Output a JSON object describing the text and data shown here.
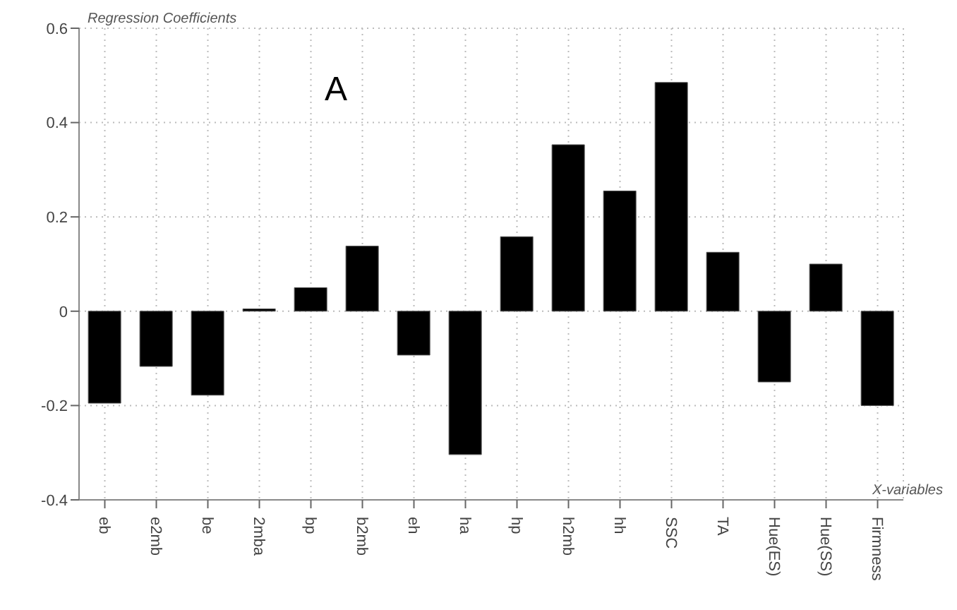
{
  "chart_data": {
    "type": "bar",
    "ylabel": "Regression Coefficients",
    "xlabel": "X-variables",
    "annotations": [
      "A"
    ],
    "categories": [
      "eb",
      "e2mb",
      "be",
      "2mba",
      "bp",
      "b2mb",
      "eh",
      "ha",
      "hp",
      "h2mb",
      "hh",
      "SSC",
      "TA",
      "Hue(ES)",
      "Hue(SS)",
      "Firmness"
    ],
    "values": [
      -0.195,
      -0.117,
      -0.178,
      0.005,
      0.05,
      0.138,
      -0.093,
      -0.304,
      0.158,
      0.353,
      0.255,
      0.485,
      0.125,
      -0.15,
      0.1,
      -0.2
    ],
    "color": "#000000",
    "ylim": [
      -0.4,
      0.6
    ],
    "yticks": [
      -0.4,
      -0.2,
      0,
      0.2,
      0.4,
      0.6
    ],
    "grid": true
  }
}
